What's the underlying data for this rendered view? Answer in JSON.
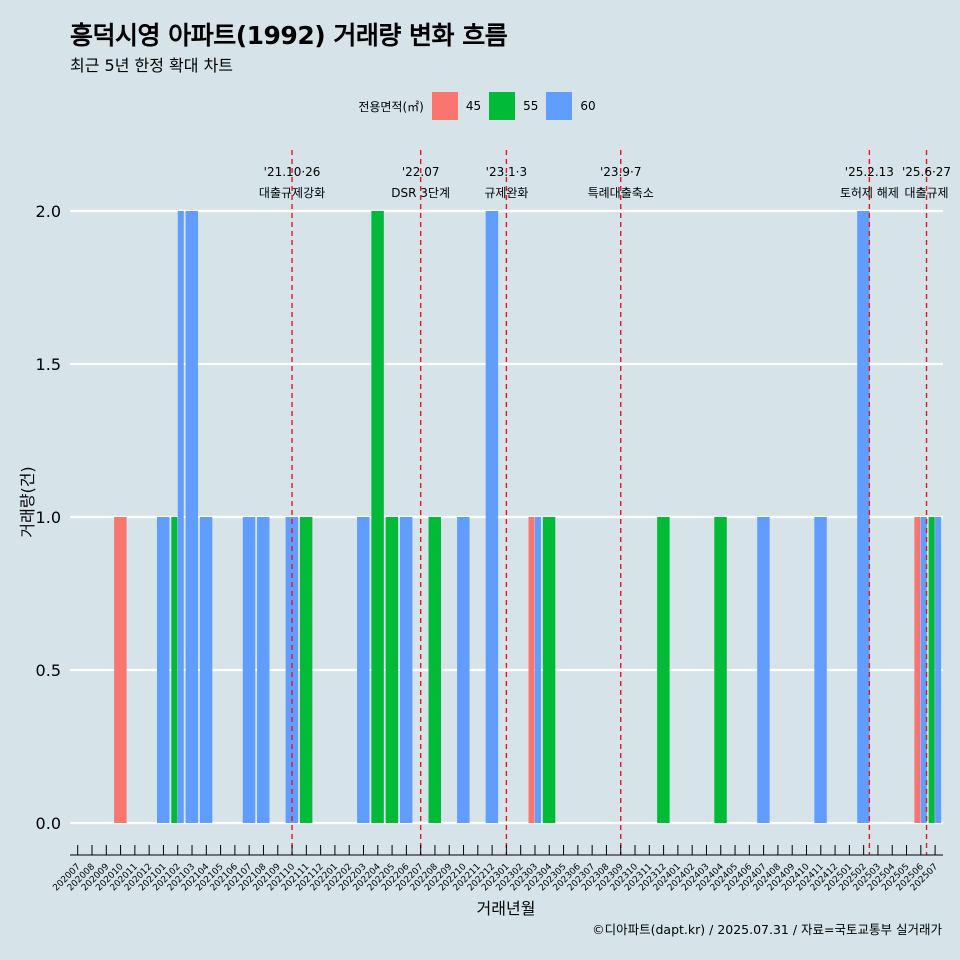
{
  "title": "흥덕시영 아파트(1992) 거래량 변화 흐름",
  "subtitle": "최근 5년 한정 확대 차트",
  "caption": "©디아파트(dapt.kr) / 2025.07.31 / 자료=국토교통부 실거래가",
  "legend": {
    "title": "전용면적(㎡)",
    "items": [
      {
        "label": "45",
        "color": "#F8766D"
      },
      {
        "label": "55",
        "color": "#00BA38"
      },
      {
        "label": "60",
        "color": "#619CFF"
      }
    ]
  },
  "chart_data": {
    "type": "bar",
    "xlabel": "거래년월",
    "ylabel": "거래량(건)",
    "ylim": [
      0,
      2
    ],
    "yticks": [
      "0.0",
      "0.5",
      "1.0",
      "1.5",
      "2.0"
    ],
    "grid": true,
    "legend_position": "top",
    "categories": [
      "202007",
      "202008",
      "202009",
      "202010",
      "202011",
      "202012",
      "202101",
      "202102",
      "202103",
      "202104",
      "202105",
      "202106",
      "202107",
      "202108",
      "202109",
      "202110",
      "202111",
      "202112",
      "202201",
      "202202",
      "202203",
      "202204",
      "202205",
      "202206",
      "202207",
      "202208",
      "202209",
      "202210",
      "202211",
      "202212",
      "202301",
      "202302",
      "202303",
      "202304",
      "202305",
      "202306",
      "202307",
      "202308",
      "202309",
      "202310",
      "202311",
      "202312",
      "202401",
      "202402",
      "202403",
      "202404",
      "202405",
      "202406",
      "202407",
      "202408",
      "202409",
      "202410",
      "202411",
      "202412",
      "202501",
      "202502",
      "202503",
      "202504",
      "202505",
      "202506",
      "202507"
    ],
    "bars": [
      {
        "month": "202010",
        "area": "45",
        "value": 1
      },
      {
        "month": "202101",
        "area": "60",
        "value": 1
      },
      {
        "month": "202102",
        "area": "55",
        "value": 1
      },
      {
        "month": "202102",
        "area": "60",
        "value": 2
      },
      {
        "month": "202103",
        "area": "60",
        "value": 2
      },
      {
        "month": "202104",
        "area": "60",
        "value": 1
      },
      {
        "month": "202107",
        "area": "60",
        "value": 1
      },
      {
        "month": "202108",
        "area": "60",
        "value": 1
      },
      {
        "month": "202110",
        "area": "60",
        "value": 1
      },
      {
        "month": "202111",
        "area": "55",
        "value": 1
      },
      {
        "month": "202203",
        "area": "60",
        "value": 1
      },
      {
        "month": "202204",
        "area": "55",
        "value": 2
      },
      {
        "month": "202205",
        "area": "55",
        "value": 1
      },
      {
        "month": "202206",
        "area": "60",
        "value": 1
      },
      {
        "month": "202208",
        "area": "55",
        "value": 1
      },
      {
        "month": "202210",
        "area": "60",
        "value": 1
      },
      {
        "month": "202212",
        "area": "60",
        "value": 2
      },
      {
        "month": "202303",
        "area": "45",
        "value": 1
      },
      {
        "month": "202303",
        "area": "60",
        "value": 1
      },
      {
        "month": "202304",
        "area": "55",
        "value": 1
      },
      {
        "month": "202312",
        "area": "55",
        "value": 1
      },
      {
        "month": "202404",
        "area": "55",
        "value": 1
      },
      {
        "month": "202407",
        "area": "60",
        "value": 1
      },
      {
        "month": "202411",
        "area": "60",
        "value": 1
      },
      {
        "month": "202502",
        "area": "60",
        "value": 2
      },
      {
        "month": "202506",
        "area": "45",
        "value": 1
      },
      {
        "month": "202506",
        "area": "60",
        "value": 1
      },
      {
        "month": "202507",
        "area": "55",
        "value": 1
      },
      {
        "month": "202507",
        "area": "60",
        "value": 1
      }
    ],
    "events": [
      {
        "month_pos": 15.0,
        "date": "'21.10·26",
        "label": "대출규제강화"
      },
      {
        "month_pos": 24.0,
        "date": "'22.07",
        "label": "DSR 3단계"
      },
      {
        "month_pos": 30.0,
        "date": "'23.1·3",
        "label": "규제완화"
      },
      {
        "month_pos": 38.0,
        "date": "'23.9·7",
        "label": "특례대출축소"
      },
      {
        "month_pos": 55.4,
        "date": "'25.2.13",
        "label": "토허제 해제"
      },
      {
        "month_pos": 59.4,
        "date": "'25.6·27",
        "label": "대출규제"
      }
    ],
    "event_color": "#e8141c"
  }
}
